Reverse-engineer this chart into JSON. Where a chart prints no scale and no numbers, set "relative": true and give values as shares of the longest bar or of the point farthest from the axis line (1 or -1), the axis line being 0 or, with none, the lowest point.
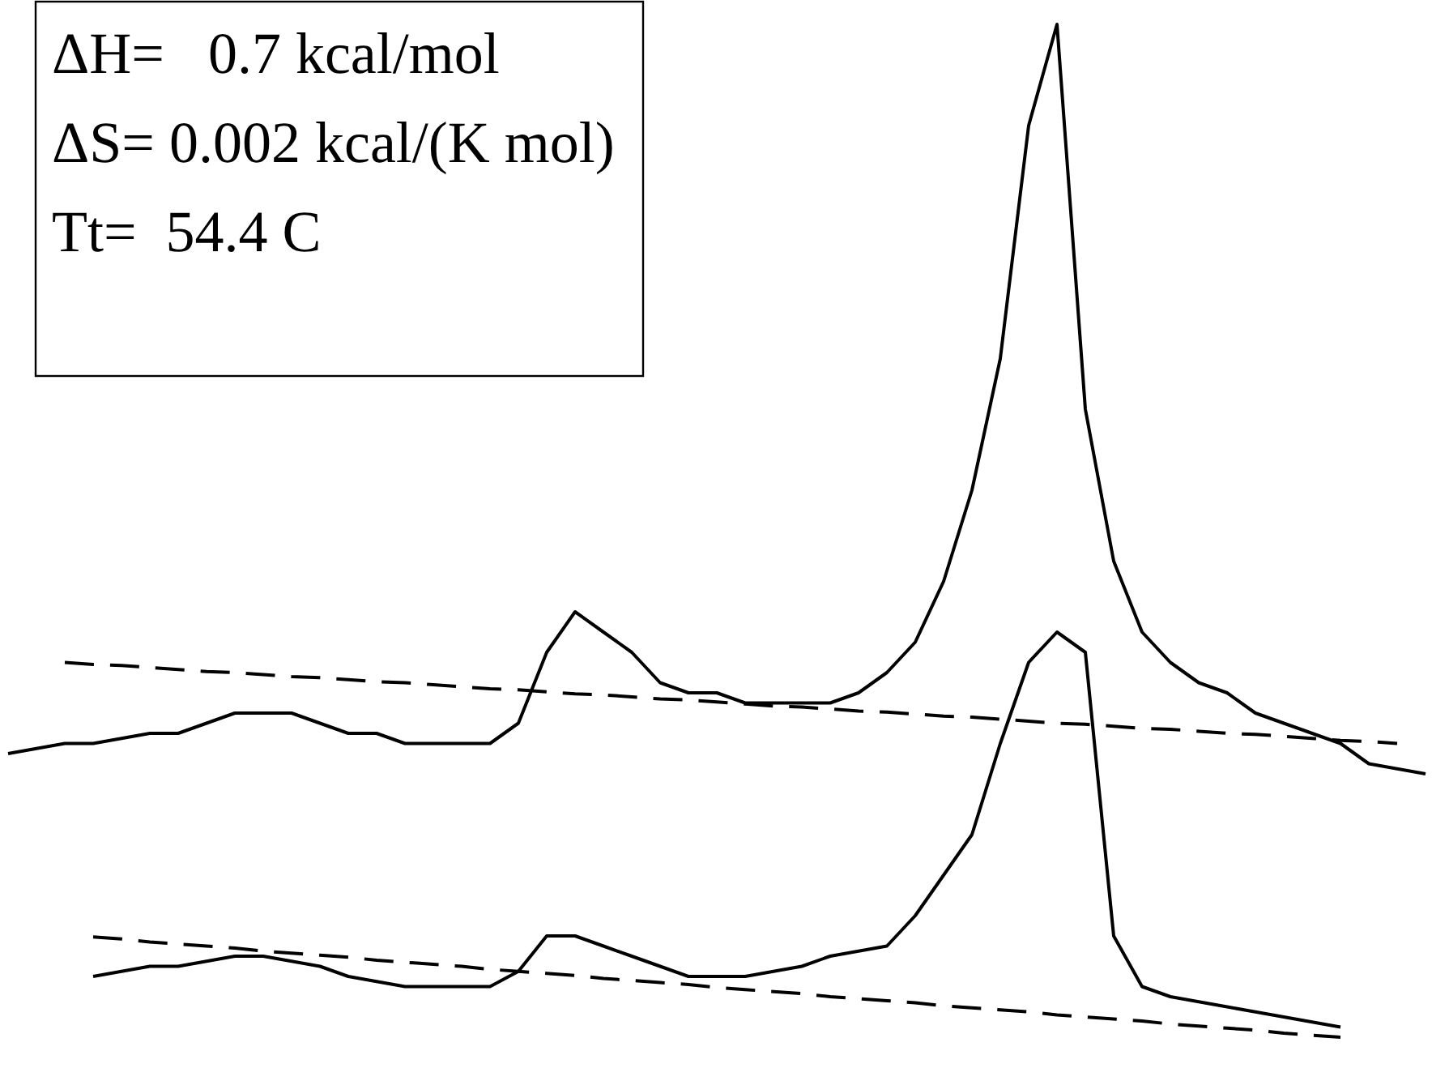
{
  "chart_data": {
    "type": "line",
    "relative": true,
    "marker": "none",
    "annotations": [
      "ΔH=   0.7 kcal/mol",
      "ΔS= 0.002 kcal/(K mol)",
      "Tt=  54.4 C"
    ],
    "categories": [
      null,
      null,
      null,
      null,
      null,
      null,
      null,
      null,
      null,
      null,
      null,
      null,
      null,
      null,
      null,
      null,
      null,
      null,
      null,
      null,
      null,
      null,
      null,
      null,
      null,
      null,
      null,
      null,
      null,
      null,
      null,
      null,
      null,
      null,
      null,
      null,
      null,
      null,
      null,
      null,
      null,
      null,
      null,
      null,
      null,
      null,
      null,
      null,
      null,
      null,
      null
    ],
    "series": [
      {
        "color": "#000000",
        "line_style": "solid",
        "values": [
          0.28,
          0.285,
          0.29,
          0.29,
          0.295,
          0.3,
          0.3,
          0.31,
          0.32,
          0.32,
          0.32,
          0.31,
          0.3,
          0.3,
          0.29,
          0.29,
          0.29,
          0.29,
          0.31,
          0.38,
          0.42,
          0.4,
          0.38,
          0.35,
          0.34,
          0.34,
          0.33,
          0.33,
          0.33,
          0.33,
          0.34,
          0.36,
          0.39,
          0.45,
          0.54,
          0.67,
          0.9,
          1.0,
          0.62,
          0.47,
          0.4,
          0.37,
          0.35,
          0.34,
          0.32,
          0.31,
          0.3,
          0.29,
          0.27,
          0.265,
          0.26
        ]
      },
      {
        "color": "#000000",
        "line_style": "solid",
        "values": [
          null,
          null,
          null,
          0.06,
          0.065,
          0.07,
          0.07,
          0.075,
          0.08,
          0.08,
          0.075,
          0.07,
          0.06,
          0.055,
          0.05,
          0.05,
          0.05,
          0.05,
          0.065,
          0.1,
          0.1,
          0.09,
          0.08,
          0.07,
          0.06,
          0.06,
          0.06,
          0.065,
          0.07,
          0.08,
          0.085,
          0.09,
          0.12,
          0.16,
          0.2,
          0.29,
          0.37,
          0.4,
          0.38,
          0.1,
          0.05,
          0.04,
          0.035,
          0.03,
          0.025,
          0.02,
          0.015,
          0.01,
          null,
          null,
          null
        ]
      },
      {
        "color": "#000000",
        "line_style": "dashed",
        "values": [
          null,
          null,
          0.37,
          0.368,
          0.367,
          0.365,
          0.363,
          0.361,
          0.36,
          0.358,
          0.356,
          0.355,
          0.353,
          0.351,
          0.35,
          0.348,
          0.346,
          0.344,
          0.343,
          0.341,
          0.339,
          0.338,
          0.336,
          0.334,
          0.333,
          0.331,
          0.329,
          0.327,
          0.326,
          0.324,
          0.322,
          0.321,
          0.319,
          0.317,
          0.316,
          0.314,
          0.312,
          0.31,
          0.309,
          0.307,
          0.305,
          0.304,
          0.302,
          0.3,
          0.299,
          0.297,
          0.295,
          0.293,
          0.292,
          0.29,
          null
        ]
      },
      {
        "color": "#000000",
        "line_style": "dashed",
        "values": [
          null,
          null,
          null,
          0.099,
          0.097,
          0.094,
          0.092,
          0.09,
          0.088,
          0.085,
          0.083,
          0.081,
          0.079,
          0.076,
          0.074,
          0.072,
          0.07,
          0.067,
          0.065,
          0.063,
          0.061,
          0.058,
          0.056,
          0.054,
          0.052,
          0.049,
          0.047,
          0.045,
          0.043,
          0.04,
          0.038,
          0.036,
          0.034,
          0.031,
          0.029,
          0.027,
          0.025,
          0.022,
          0.02,
          0.018,
          0.016,
          0.013,
          0.011,
          0.009,
          0.007,
          0.004,
          0.002,
          0.0,
          null,
          null,
          null
        ]
      }
    ]
  }
}
